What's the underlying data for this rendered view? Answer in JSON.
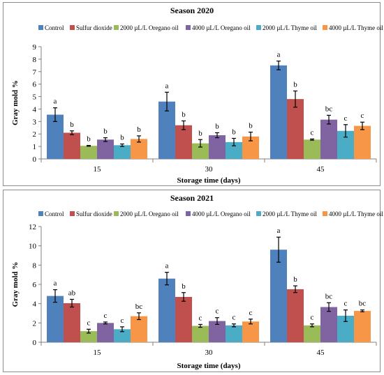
{
  "chart_data": [
    {
      "type": "bar",
      "title": "Season 2020",
      "xlabel": "Storage time (days)",
      "ylabel": "Gray mold %",
      "categories": [
        "15",
        "30",
        "45"
      ],
      "ylim": [
        0,
        9
      ],
      "yticks": [
        "0",
        "1",
        "2",
        "3",
        "4",
        "5",
        "6",
        "7",
        "8",
        "9"
      ],
      "grid": false,
      "legend_position": "top",
      "error_bars": true,
      "series": [
        {
          "name": "Control",
          "color": "#4f81bd",
          "values": [
            3.55,
            4.6,
            7.5
          ],
          "errors": [
            0.55,
            0.75,
            0.35
          ],
          "letters": [
            "a",
            "a",
            "a"
          ]
        },
        {
          "name": "Sulfur dioxide",
          "color": "#c0504d",
          "values": [
            2.1,
            2.7,
            4.8
          ],
          "errors": [
            0.15,
            0.35,
            0.65
          ],
          "letters": [
            "b",
            "b",
            "b"
          ]
        },
        {
          "name": "2000 µL/L Oregano oil",
          "color": "#9bbb59",
          "values": [
            1.05,
            1.25,
            1.55
          ],
          "errors": [
            0.03,
            0.3,
            0.05
          ],
          "letters": [
            "b",
            "b",
            "c"
          ]
        },
        {
          "name": "4000 µL/L Oregano oil",
          "color": "#8064a2",
          "values": [
            1.55,
            1.9,
            3.15
          ],
          "errors": [
            0.15,
            0.2,
            0.35
          ],
          "letters": [
            "b",
            "b",
            "bc"
          ]
        },
        {
          "name": "2000 µL/L Thyme oil",
          "color": "#4bacc6",
          "values": [
            1.1,
            1.35,
            2.25
          ],
          "errors": [
            0.1,
            0.3,
            0.5
          ],
          "letters": [
            "b",
            "b",
            "c"
          ]
        },
        {
          "name": "4000 µL/L Thyme oil",
          "color": "#f79646",
          "values": [
            1.6,
            1.8,
            2.65
          ],
          "errors": [
            0.25,
            0.35,
            0.3
          ],
          "letters": [
            "b",
            "b",
            "c"
          ]
        }
      ]
    },
    {
      "type": "bar",
      "title": "Season 2021",
      "xlabel": "Storage time (days)",
      "ylabel": "Gray mold %",
      "categories": [
        "15",
        "30",
        "45"
      ],
      "ylim": [
        0,
        12
      ],
      "yticks": [
        "0",
        "2",
        "4",
        "6",
        "8",
        "10",
        "12"
      ],
      "grid": false,
      "legend_position": "top",
      "error_bars": true,
      "series": [
        {
          "name": "Control",
          "color": "#4f81bd",
          "values": [
            4.8,
            6.6,
            9.6
          ],
          "errors": [
            0.65,
            0.65,
            1.3
          ],
          "letters": [
            "a",
            "a",
            "a"
          ]
        },
        {
          "name": "Sulfur dioxide",
          "color": "#c0504d",
          "values": [
            4.05,
            4.7,
            5.5
          ],
          "errors": [
            0.4,
            0.45,
            0.35
          ],
          "letters": [
            "ab",
            "b",
            "b"
          ]
        },
        {
          "name": "2000 µL/L Oregano oil",
          "color": "#9bbb59",
          "values": [
            1.15,
            1.7,
            1.75
          ],
          "errors": [
            0.2,
            0.15,
            0.15
          ],
          "letters": [
            "c",
            "c",
            "c"
          ]
        },
        {
          "name": "4000 µL/L Oregano oil",
          "color": "#8064a2",
          "values": [
            2.0,
            2.2,
            3.65
          ],
          "errors": [
            0.1,
            0.35,
            0.45
          ],
          "letters": [
            "c",
            "c",
            "bc"
          ]
        },
        {
          "name": "2000 µL/L Thyme oil",
          "color": "#4bacc6",
          "values": [
            1.35,
            1.75,
            2.75
          ],
          "errors": [
            0.25,
            0.15,
            0.6
          ],
          "letters": [
            "c",
            "c",
            "c"
          ]
        },
        {
          "name": "4000 µL/L Thyme oil",
          "color": "#f79646",
          "values": [
            2.7,
            2.15,
            3.25
          ],
          "errors": [
            0.35,
            0.25,
            0.1
          ],
          "letters": [
            "bc",
            "c",
            "bc"
          ]
        }
      ]
    }
  ]
}
